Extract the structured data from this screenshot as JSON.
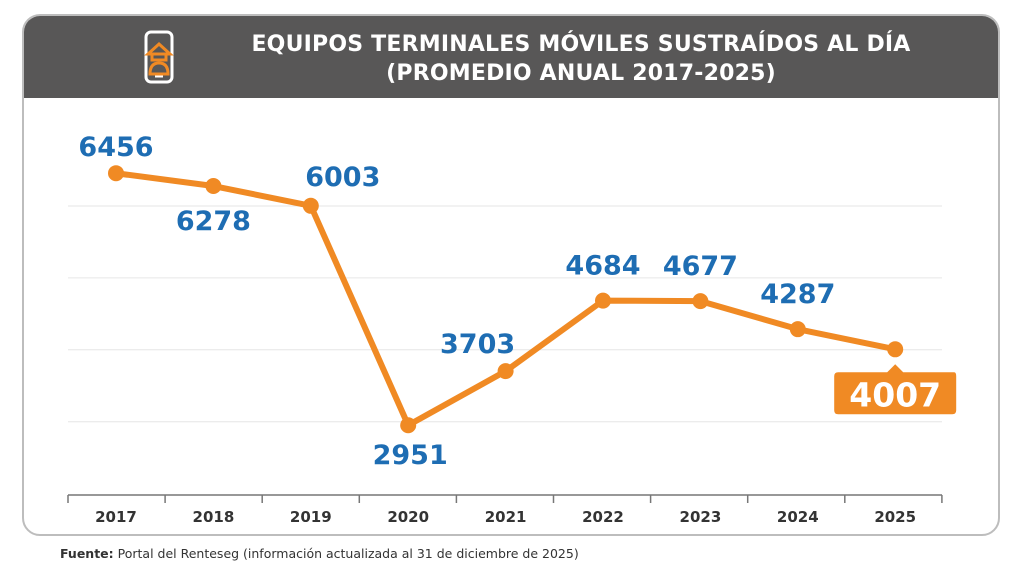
{
  "header": {
    "title_line1": "EQUIPOS TERMINALES MÓVILES SUSTRAÍDOS AL DÍA",
    "title_line2": "(PROMEDIO ANUAL 2017-2025)",
    "icon": "phone-thief-icon"
  },
  "source": {
    "label": "Fuente:",
    "text": "Portal del Renteseg (información actualizada al 31 de diciembre de 2025)"
  },
  "colors": {
    "line": "#f08a24",
    "labels": "#1e6db3",
    "header": "#585757",
    "grid": "#e6e6e6"
  },
  "chart_data": {
    "type": "line",
    "categories": [
      "2017",
      "2018",
      "2019",
      "2020",
      "2021",
      "2022",
      "2023",
      "2024",
      "2025"
    ],
    "values": [
      6456,
      6278,
      6003,
      2951,
      3703,
      4684,
      4677,
      4287,
      4007
    ],
    "data_labels": [
      "6456",
      "6278",
      "6003",
      "2951",
      "3703",
      "4684",
      "4677",
      "4287",
      "4007"
    ],
    "highlight": "2025",
    "grid": true,
    "ylim": [
      2000,
      7000
    ]
  }
}
